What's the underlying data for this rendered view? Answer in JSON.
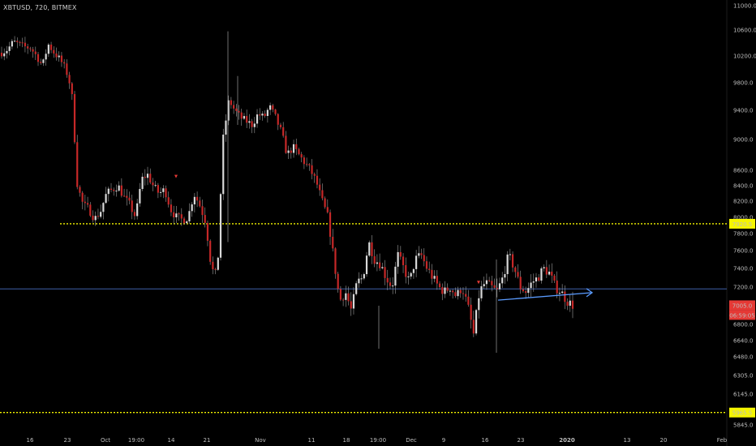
{
  "symbol_label": "XBTUSD, 720, BITMEX",
  "colors": {
    "background": "#000000",
    "up_candle": "#d9d9d9",
    "down_candle": "#c62828",
    "wick": "#9e9e9e",
    "resistance_line": "#f5f500",
    "horizontal_blue": "#3f5fa8",
    "trend_arrow": "#5a9bff",
    "price_tag_red": "#e53935",
    "axis_text": "#bdbdbd"
  },
  "chart_data": {
    "type": "candlestick",
    "title": "XBTUSD, 720, BITMEX",
    "ylim": [
      5800,
      11000
    ],
    "y_ticks": [
      11000.0,
      10600.0,
      10200.0,
      9800.0,
      9400.0,
      9000.0,
      8600.0,
      8400.0,
      8200.0,
      8000.0,
      7800.0,
      7600.0,
      7400.0,
      7200.0,
      6800.0,
      6640.0,
      6480.0,
      6305.0,
      6145.0,
      5845.0
    ],
    "y_tick_labels": [
      "11000.0",
      "10600.0",
      "10200.0",
      "9800.0",
      "9400.0",
      "9000.0",
      "8600.0",
      "8400.0",
      "8200.0",
      "8000.0",
      "7800.0",
      "7600.0",
      "7400.0",
      "7200.0",
      "6800.0",
      "6640.0",
      "6480.0",
      "6305.0",
      "6145.0",
      "5845.0"
    ],
    "x_ticks": [
      "16",
      "23",
      "Oct",
      "19:00",
      "14",
      "21",
      "Nov",
      "11",
      "18",
      "19:00",
      "Dec",
      "9",
      "16",
      "23",
      "2020",
      "13",
      "20",
      "Feb"
    ],
    "x_tick_bold": [
      false,
      false,
      false,
      false,
      false,
      false,
      false,
      false,
      false,
      false,
      false,
      false,
      false,
      false,
      true,
      false,
      false,
      false
    ],
    "horizontal_lines": [
      {
        "price": 7920.5,
        "label": "7920.5",
        "style": "dotted",
        "color": "#f5f500"
      },
      {
        "price": 5965.5,
        "label": "5965.5",
        "style": "dotted",
        "color": "#f5f500"
      },
      {
        "price": 7180,
        "style": "solid",
        "color": "#3f5fa8"
      }
    ],
    "trend_arrow": {
      "start_price": 7060,
      "end_price": 7140,
      "color": "#5a9bff"
    },
    "markers": [
      {
        "price": 8520,
        "color": "#e53935"
      },
      {
        "price": 7250,
        "color": "#e53935"
      }
    ],
    "last_price": {
      "value": "7005.0",
      "countdown": "06:59:05"
    },
    "close_path": [
      10250,
      10300,
      10420,
      10380,
      10340,
      10320,
      10200,
      10050,
      10380,
      10250,
      10150,
      10000,
      9700,
      8400,
      8150,
      8100,
      7980,
      8080,
      8300,
      8350,
      8400,
      8250,
      8150,
      8000,
      8480,
      8550,
      8400,
      8300,
      8350,
      8100,
      8000,
      7970,
      8000,
      8300,
      8150,
      7950,
      7400,
      7300,
      9000,
      9550,
      9400,
      9300,
      9250,
      9200,
      9350,
      9300,
      9450,
      9300,
      9100,
      8800,
      8900,
      8800,
      8700,
      8600,
      8450,
      8200,
      8000,
      7500,
      7050,
      7150,
      6950,
      7250,
      7300,
      7700,
      7500,
      7450,
      7300,
      7200,
      7550,
      7400,
      7250,
      7500,
      7550,
      7400,
      7300,
      7200,
      7150,
      7200,
      7100,
      7200,
      7000,
      6700,
      7150,
      7250,
      7200,
      7150,
      7300,
      7550,
      7400,
      7200,
      7150,
      7250,
      7300,
      7400,
      7350,
      7200,
      7150,
      7050,
      7005
    ],
    "candle_count": 220
  }
}
